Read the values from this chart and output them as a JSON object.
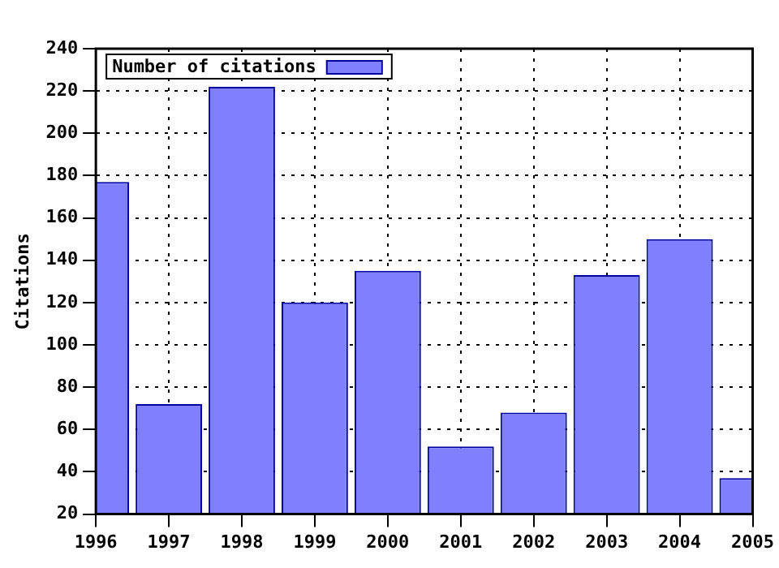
{
  "chart_data": {
    "type": "bar",
    "ylabel": "Citations",
    "x": [
      1996,
      1997,
      1998,
      1999,
      2000,
      2001,
      2002,
      2003,
      2004,
      2005
    ],
    "series": [
      {
        "name": "Number of citations",
        "color": "#8080ff",
        "values": [
          177,
          72,
          222,
          120,
          135,
          52,
          68,
          133,
          150,
          37
        ]
      }
    ],
    "xlim": [
      1996,
      2005
    ],
    "xticks": [
      1996,
      1997,
      1998,
      1999,
      2000,
      2001,
      2002,
      2003,
      2004,
      2005
    ],
    "ylim": [
      20,
      240
    ],
    "yticks": [
      20,
      40,
      60,
      80,
      100,
      120,
      140,
      160,
      180,
      200,
      220,
      240
    ],
    "grid": true,
    "legend": "top left"
  }
}
